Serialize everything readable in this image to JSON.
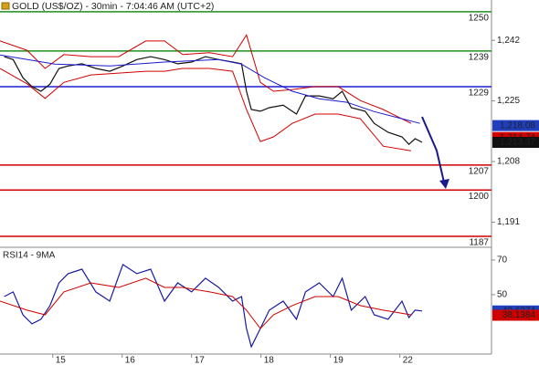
{
  "chart_data": [
    {
      "type": "line",
      "title": "GOLD (US$/OZ) - 30min - 7:04:46 AM (UTC+2)",
      "xlim": [
        -0.76,
        6.32
      ],
      "ylim": [
        1184.2,
        1253.3
      ],
      "yticks": [
        {
          "value": 1242,
          "label": "1,242"
        },
        {
          "value": 1225,
          "label": "1,225"
        },
        {
          "value": 1208,
          "label": "1,208"
        },
        {
          "value": 1191,
          "label": "1,191"
        }
      ],
      "series": [
        {
          "color": "#111111",
          "x": [
            -0.7,
            -0.57,
            -0.43,
            -0.3,
            -0.17,
            -0.04,
            0.09,
            0.22,
            0.42,
            0.62,
            0.82,
            1.01,
            1.21,
            1.41,
            1.61,
            1.8,
            2.0,
            2.2,
            2.39,
            2.59,
            2.72,
            2.79,
            2.86,
            2.99,
            3.12,
            3.32,
            3.51,
            3.64,
            3.84,
            4.04,
            4.17,
            4.3,
            4.5,
            4.63,
            4.83,
            5.03,
            5.13,
            5.22,
            5.32
          ],
          "values": [
            1237.4,
            1236.6,
            1231.5,
            1229.0,
            1227.7,
            1229.7,
            1234.1,
            1234.8,
            1235.4,
            1234.1,
            1233.3,
            1234.8,
            1236.6,
            1237.4,
            1236.6,
            1235.4,
            1235.9,
            1237.4,
            1236.6,
            1235.9,
            1235.4,
            1227.7,
            1222.6,
            1222.1,
            1223.1,
            1223.8,
            1221.3,
            1226.4,
            1226.4,
            1225.6,
            1227.7,
            1223.1,
            1222.1,
            1218.7,
            1216.2,
            1214.9,
            1212.8,
            1214.4,
            1213.4
          ]
        },
        {
          "color": "#d00000",
          "x": [
            -0.76,
            -0.37,
            -0.11,
            0.16,
            0.55,
            0.95,
            1.34,
            1.61,
            1.87,
            2.26,
            2.59,
            2.79,
            2.99,
            3.18,
            3.45,
            3.78,
            4.11,
            4.43,
            4.76,
            5.16
          ],
          "values": [
            1241.8,
            1239.2,
            1234.1,
            1238.0,
            1237.4,
            1237.4,
            1241.8,
            1241.8,
            1238.0,
            1238.5,
            1237.4,
            1243.5,
            1230.2,
            1227.7,
            1228.2,
            1229.0,
            1229.0,
            1225.1,
            1222.6,
            1218.7
          ]
        },
        {
          "color": "#d00000",
          "x": [
            -0.76,
            -0.37,
            -0.11,
            0.16,
            0.55,
            0.95,
            1.34,
            1.61,
            1.87,
            2.26,
            2.59,
            2.79,
            2.99,
            3.18,
            3.45,
            3.78,
            4.11,
            4.43,
            4.76,
            5.16
          ],
          "values": [
            1234.1,
            1229.8,
            1225.7,
            1230.2,
            1232.3,
            1232.8,
            1233.3,
            1233.3,
            1234.1,
            1234.1,
            1233.3,
            1222.6,
            1213.6,
            1214.9,
            1218.7,
            1221.3,
            1221.3,
            1220.0,
            1212.3,
            1211.0
          ]
        },
        {
          "color": "#1a1ad0",
          "x": [
            -0.76,
            0.03,
            0.82,
            1.61,
            2.39,
            2.72,
            3.05,
            3.45,
            3.84,
            4.24,
            4.63,
            5.03,
            5.29
          ],
          "values": [
            1237.9,
            1235.3,
            1234.8,
            1235.9,
            1236.6,
            1235.3,
            1231.5,
            1227.7,
            1225.6,
            1224.6,
            1222.0,
            1220.0,
            1218.7
          ]
        }
      ],
      "levels": [
        {
          "value": 1250,
          "color": "#1f8f1f"
        },
        {
          "value": 1239,
          "color": "#1f8f1f"
        },
        {
          "value": 1229,
          "color": "#1f1fd0"
        },
        {
          "value": 1207,
          "color": "#d00000"
        },
        {
          "value": 1200,
          "color": "#d00000"
        },
        {
          "value": 1187,
          "color": "#d00000"
        }
      ],
      "price_tags": [
        {
          "value": 1218.08,
          "label": "1,218.08",
          "color": "#1f3fbf"
        },
        {
          "value": 1214.74,
          "label": "1,214.74",
          "color": "#d00000"
        },
        {
          "value": 1213.37,
          "label": "1,213.37",
          "color": "#111111"
        }
      ]
    },
    {
      "type": "line",
      "title": "RSI14 - 9MA",
      "xlim": [
        -0.76,
        6.32
      ],
      "ylim": [
        16.3,
        76.8
      ],
      "yticks": [
        70,
        50
      ],
      "xticks": [
        {
          "value": 0,
          "label": "15"
        },
        {
          "value": 1,
          "label": "16"
        },
        {
          "value": 2,
          "label": "17"
        },
        {
          "value": 3,
          "label": "18"
        },
        {
          "value": 4,
          "label": "19"
        },
        {
          "value": 5,
          "label": "22"
        }
      ],
      "series": [
        {
          "color": "#1a1aa0",
          "x": [
            -0.7,
            -0.57,
            -0.43,
            -0.3,
            -0.17,
            -0.04,
            0.09,
            0.22,
            0.42,
            0.62,
            0.82,
            1.01,
            1.21,
            1.41,
            1.61,
            1.8,
            2.0,
            2.2,
            2.39,
            2.59,
            2.72,
            2.79,
            2.86,
            2.99,
            3.12,
            3.32,
            3.51,
            3.64,
            3.84,
            4.04,
            4.17,
            4.3,
            4.5,
            4.63,
            4.83,
            5.03,
            5.13,
            5.22,
            5.32
          ],
          "values": [
            48.9,
            51.6,
            38.4,
            33.2,
            35.8,
            43.7,
            56.8,
            62.1,
            64.7,
            51.6,
            46.3,
            67.4,
            62.1,
            64.7,
            46.3,
            56.8,
            51.6,
            59.5,
            54.2,
            46.3,
            48.9,
            30.5,
            20.0,
            30.5,
            41.1,
            46.3,
            35.8,
            51.6,
            56.8,
            48.9,
            59.5,
            41.1,
            48.9,
            38.4,
            35.8,
            46.3,
            36.8,
            41.1,
            40.6
          ]
        },
        {
          "color": "#d00000",
          "x": [
            -0.76,
            -0.37,
            -0.11,
            0.16,
            0.55,
            0.95,
            1.34,
            1.61,
            1.87,
            2.26,
            2.59,
            2.79,
            2.99,
            3.18,
            3.45,
            3.78,
            4.11,
            4.43,
            4.76,
            5.16
          ],
          "values": [
            46.3,
            41.1,
            38.4,
            51.6,
            56.8,
            54.2,
            59.5,
            54.2,
            54.2,
            51.6,
            48.9,
            41.1,
            30.5,
            38.4,
            43.7,
            48.9,
            48.9,
            43.7,
            41.1,
            38.4
          ]
        }
      ],
      "price_tags": [
        {
          "value": 40.6374,
          "label": "40.6374",
          "color": "#1f3fbf"
        },
        {
          "value": 38.1384,
          "label": "38.1384",
          "color": "#d00000"
        }
      ]
    }
  ]
}
